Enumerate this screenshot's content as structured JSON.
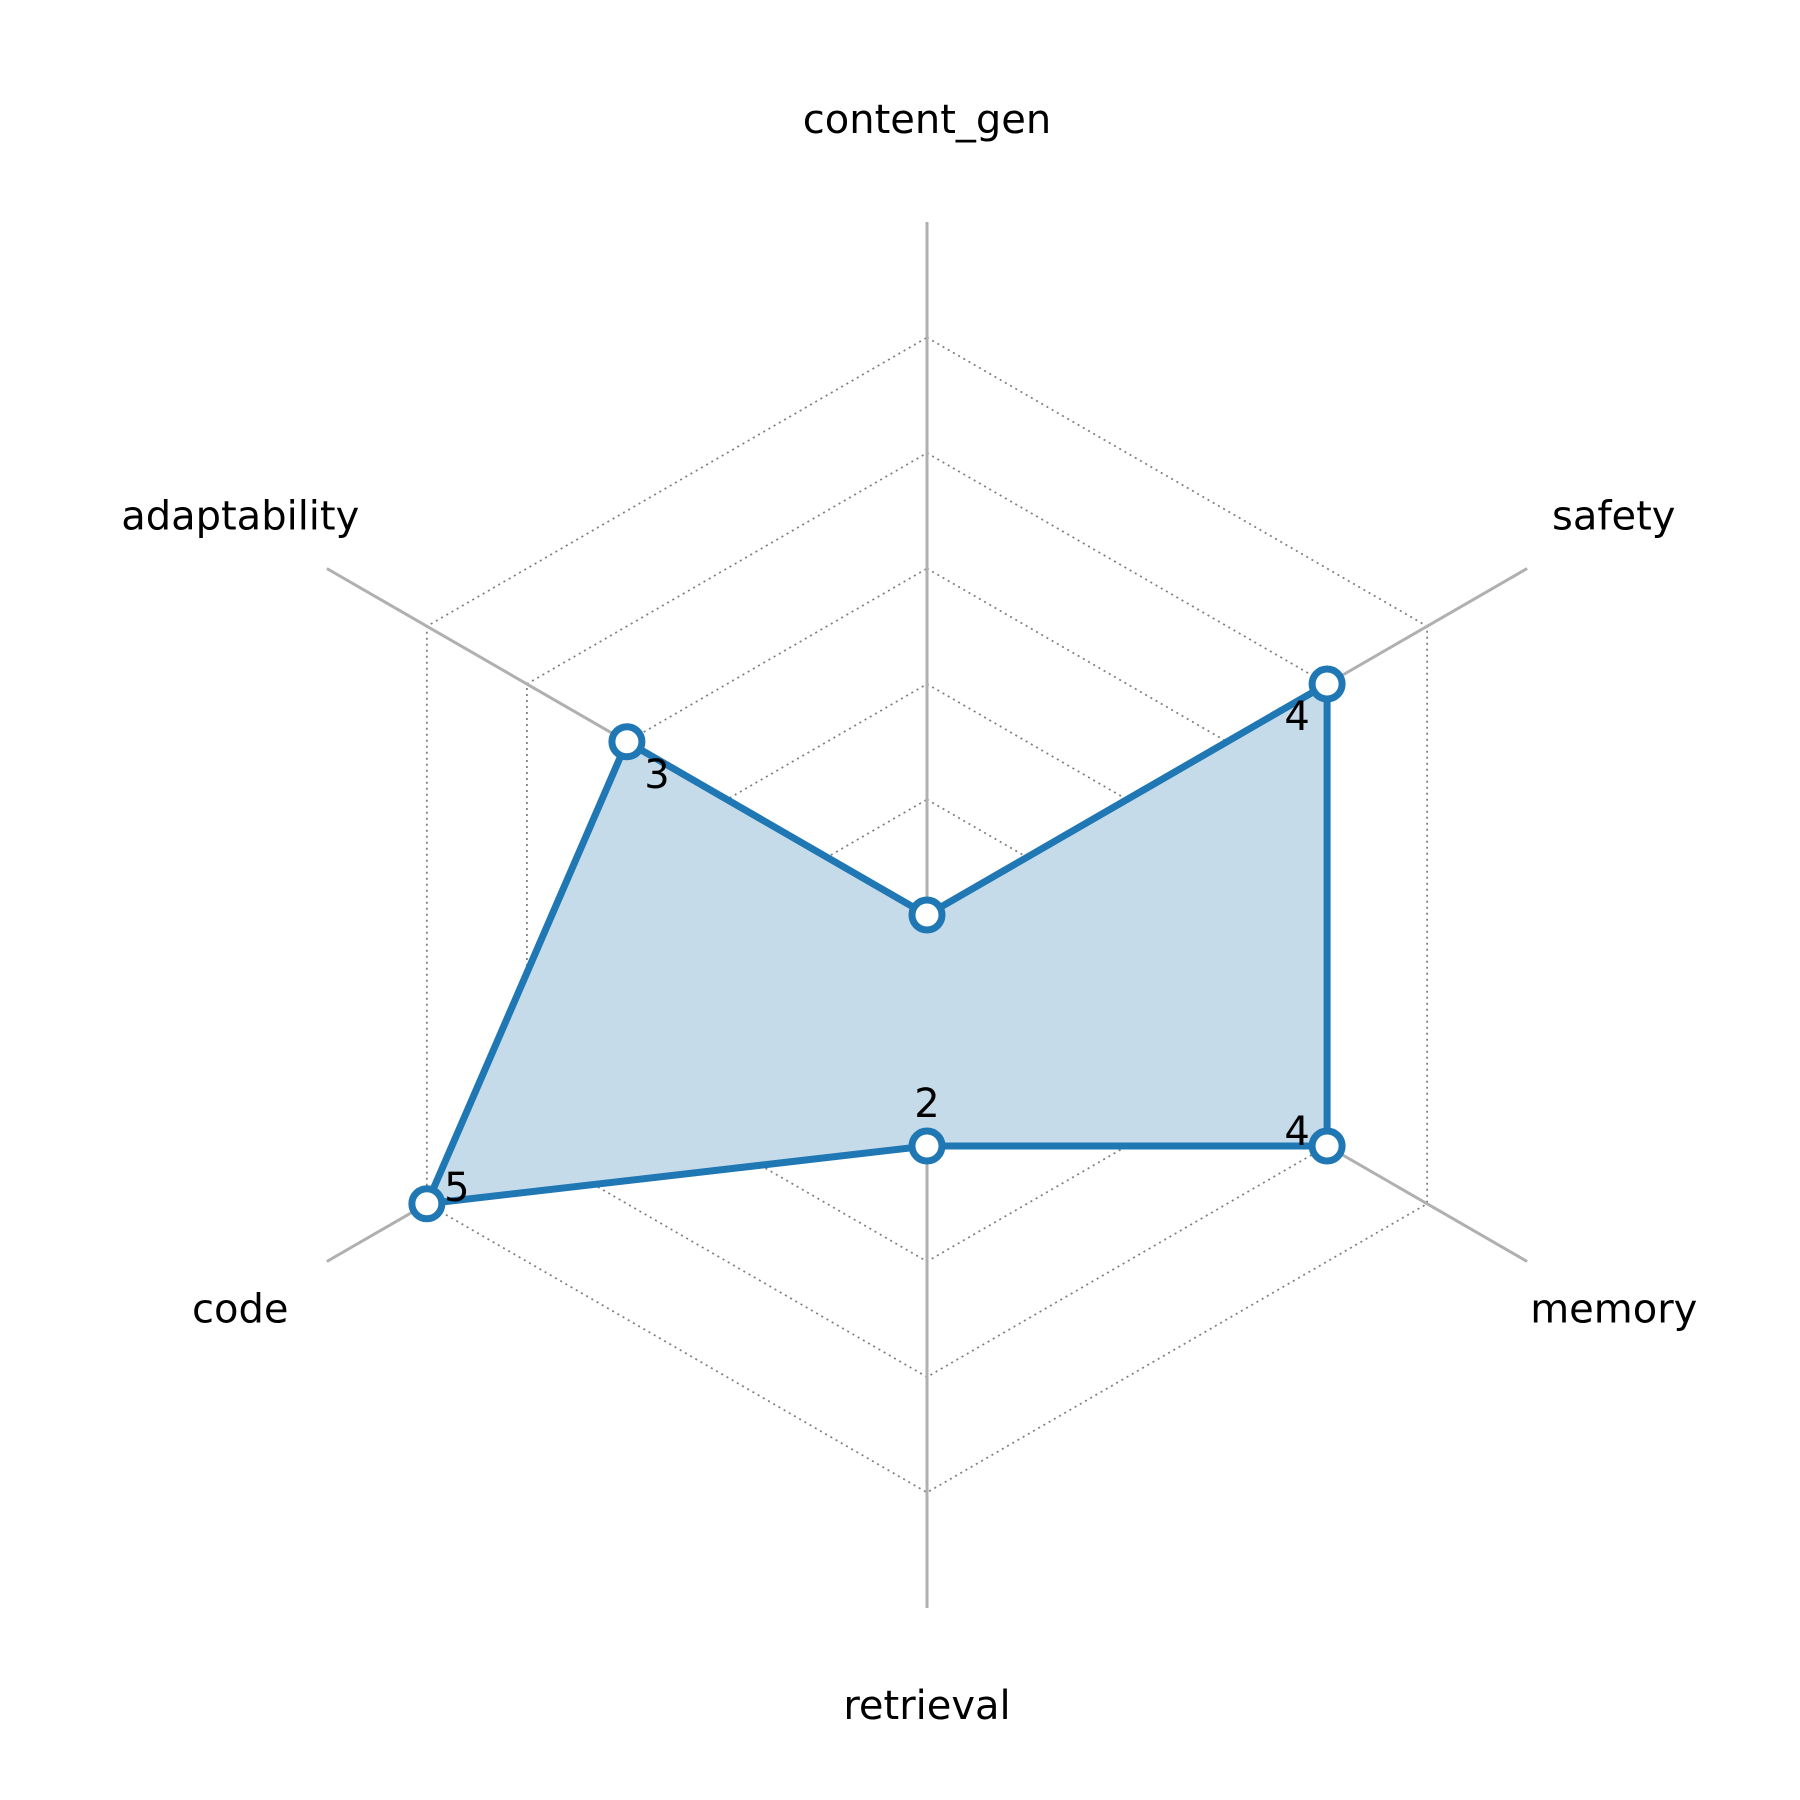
{
  "chart_data": {
    "type": "radar",
    "title": "",
    "categories": [
      "content_gen",
      "safety",
      "memory",
      "retrieval",
      "code",
      "adaptability"
    ],
    "series": [
      {
        "values": [
          0,
          4,
          4,
          2,
          5,
          3
        ],
        "value_labels": [
          "",
          "4",
          "4",
          "2",
          "5",
          "3"
        ]
      }
    ],
    "rlim": [
      0,
      6
    ],
    "grid_levels": [
      1,
      2,
      3,
      4,
      5,
      6
    ],
    "grid_style": "dotted",
    "legend": "none",
    "colors": {
      "line": "#1f77b4",
      "fill": "#c6dbea",
      "axis": "#b0b0b0",
      "grid": "#808080",
      "marker_face": "#ffffff"
    }
  }
}
